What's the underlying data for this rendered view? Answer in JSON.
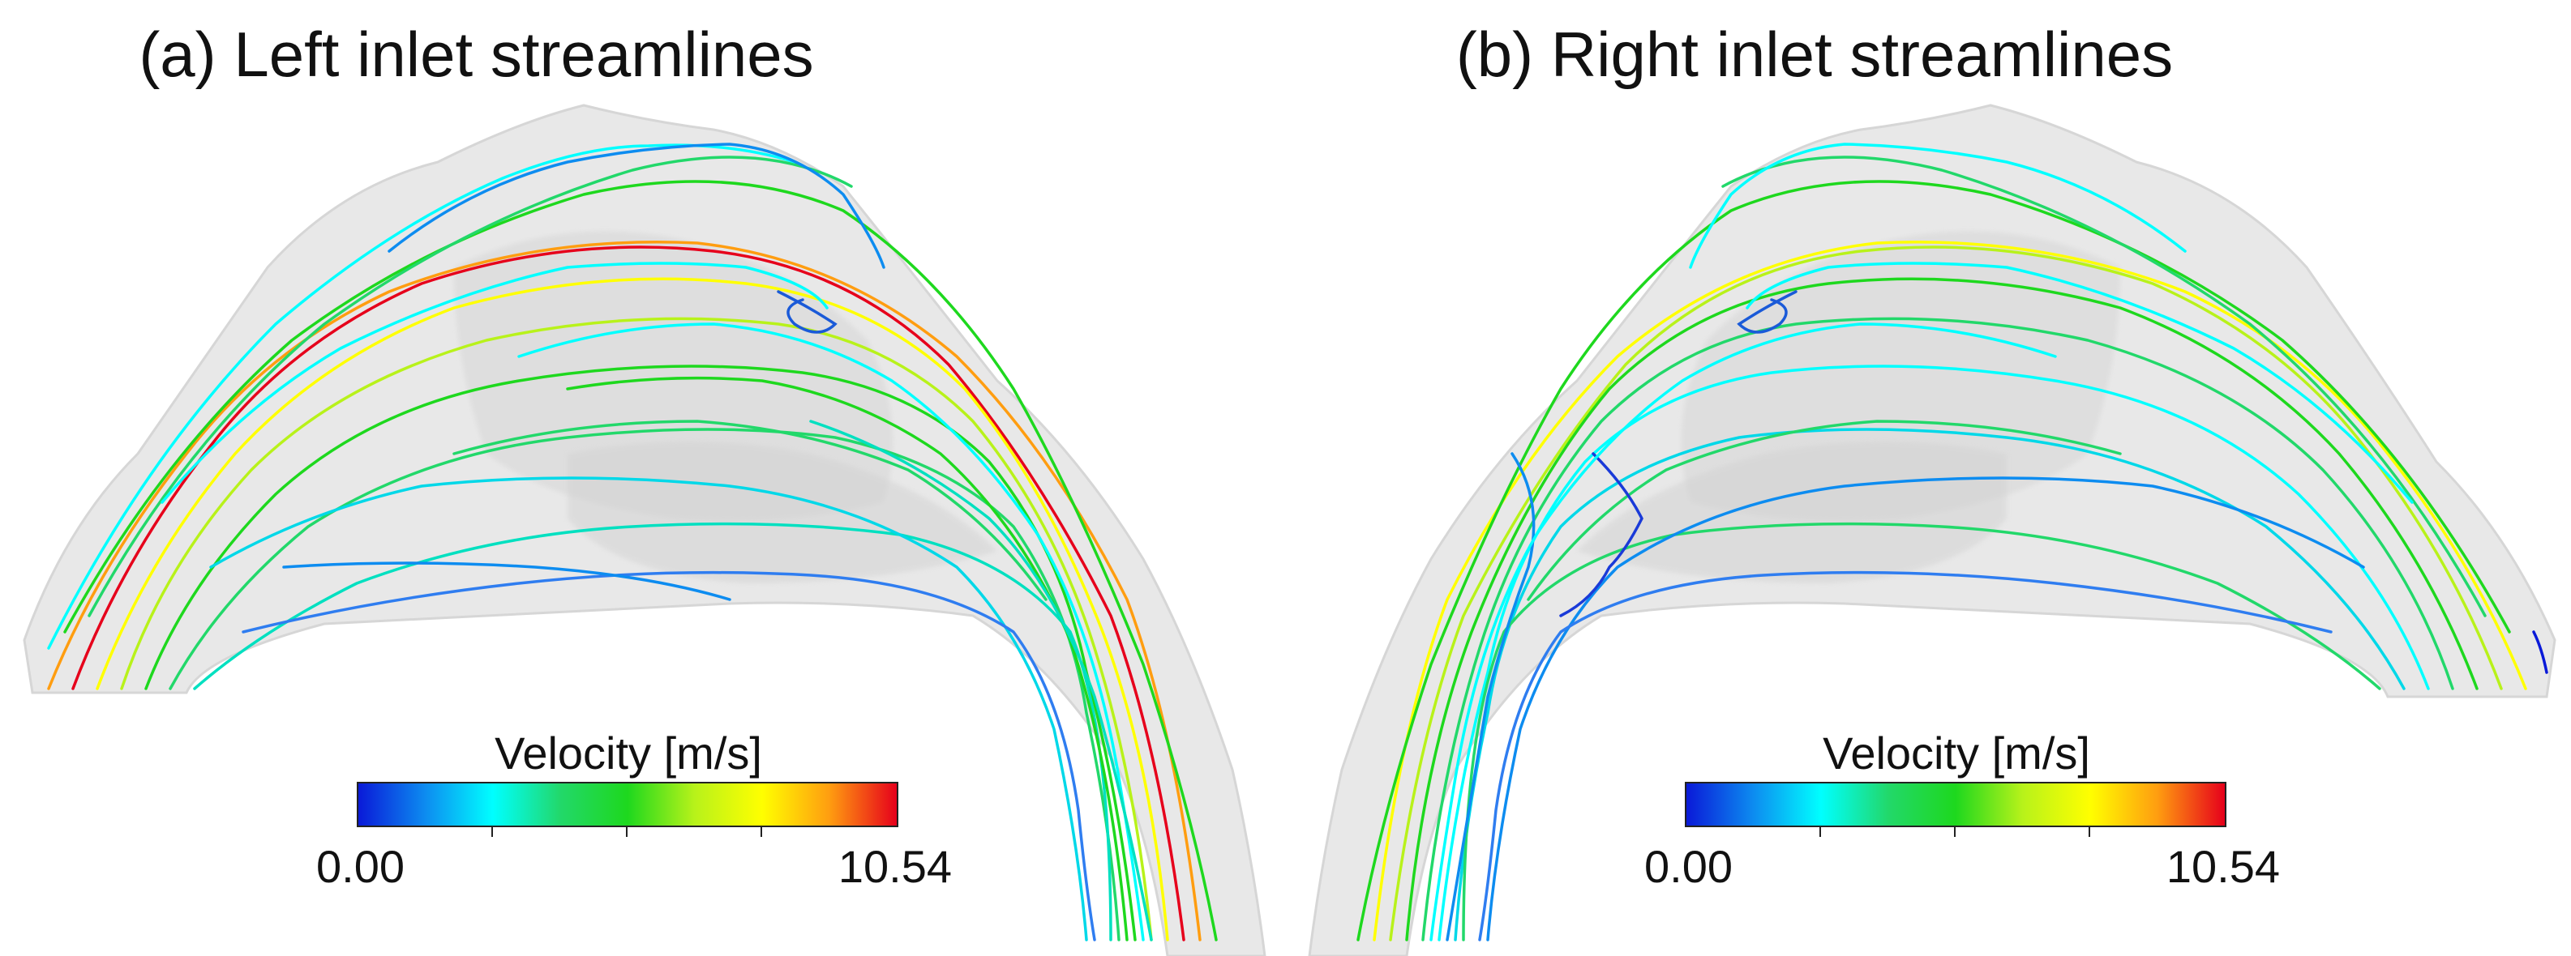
{
  "panels": [
    {
      "title": "(a) Left inlet streamlines",
      "colorbar": {
        "title": "Velocity [m/s]",
        "min_label": "0.00",
        "max_label": "10.54"
      }
    },
    {
      "title": "(b) Right inlet streamlines",
      "colorbar": {
        "title": "Velocity [m/s]",
        "min_label": "0.00",
        "max_label": "10.54"
      }
    }
  ],
  "colormap": [
    "#0a1ad8",
    "#0d8cf0",
    "#00ffff",
    "#22d86a",
    "#1ed81e",
    "#b8f21a",
    "#ffff00",
    "#ff9d10",
    "#e6001b"
  ]
}
